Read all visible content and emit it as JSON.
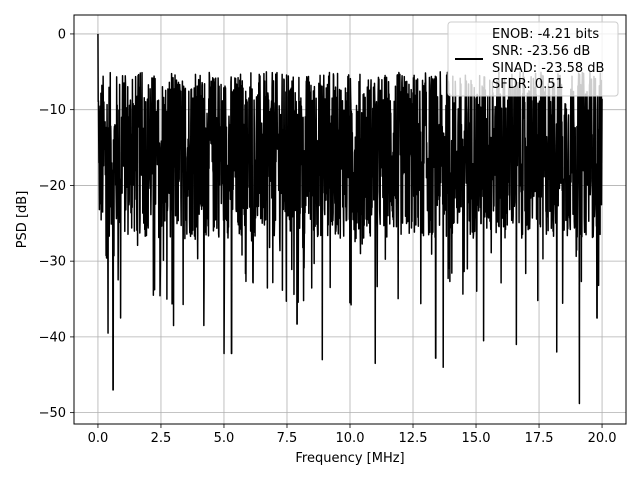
{
  "chart_data": {
    "type": "line",
    "title": "",
    "xlabel": "Frequency [MHz]",
    "ylabel": "PSD [dB]",
    "xlim": [
      -0.95,
      20.95
    ],
    "ylim": [
      -51.5,
      2.5
    ],
    "xticks": [
      0,
      2.5,
      5,
      7.5,
      10,
      12.5,
      15,
      17.5,
      20
    ],
    "xtick_labels": [
      "0.0",
      "2.5",
      "5.0",
      "7.5",
      "10.0",
      "12.5",
      "15.0",
      "17.5",
      "20.0"
    ],
    "yticks": [
      0,
      -10,
      -20,
      -30,
      -40,
      -50
    ],
    "ytick_labels": [
      "0",
      "−10",
      "−20",
      "−30",
      "−40",
      "−50"
    ],
    "grid": true,
    "legend_position": "top-right",
    "legend_lines": [
      "ENOB: -4.21 bits",
      "SNR: -23.56 dB",
      "SINAD: -23.58 dB",
      "SFDR: 0.51"
    ],
    "series": [
      {
        "color": "#000000",
        "points_count": 2048,
        "x_range": [
          0,
          20
        ],
        "peak": {
          "x": 0,
          "y": 0
        },
        "noise_floor_mean": -17,
        "noise_floor_spread": [
          -27,
          -5
        ],
        "notable_dips": [
          {
            "x": 0.4,
            "y": -39.5
          },
          {
            "x": 0.6,
            "y": -47
          },
          {
            "x": 0.9,
            "y": -37.5
          },
          {
            "x": 2.2,
            "y": -34.5
          },
          {
            "x": 3.0,
            "y": -38.5
          },
          {
            "x": 4.2,
            "y": -38.5
          },
          {
            "x": 5.0,
            "y": -42.2
          },
          {
            "x": 5.3,
            "y": -42.2
          },
          {
            "x": 7.9,
            "y": -38.3
          },
          {
            "x": 8.9,
            "y": -43
          },
          {
            "x": 10.0,
            "y": -35.5
          },
          {
            "x": 11.0,
            "y": -43.5
          },
          {
            "x": 13.4,
            "y": -42.8
          },
          {
            "x": 13.7,
            "y": -44
          },
          {
            "x": 15.3,
            "y": -40.5
          },
          {
            "x": 16.6,
            "y": -41
          },
          {
            "x": 18.2,
            "y": -42
          },
          {
            "x": 19.1,
            "y": -48.8
          },
          {
            "x": 19.8,
            "y": -37.5
          }
        ]
      }
    ]
  }
}
